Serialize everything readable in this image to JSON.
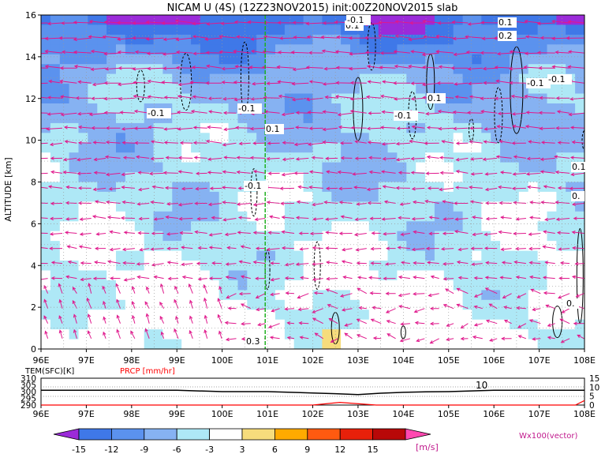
{
  "chart_data": [
    {
      "type": "heatmap",
      "title": "NICAM U (4S) (12Z23NOV2015) init:00Z20NOV2015 slab",
      "ylabel": "ALTITUDE [km]",
      "x_ticks": [
        "96E",
        "97E",
        "98E",
        "99E",
        "100E",
        "101E",
        "102E",
        "103E",
        "104E",
        "105E",
        "106E",
        "107E",
        "108E"
      ],
      "y_ticks": [
        "0",
        "2",
        "4",
        "6",
        "8",
        "10",
        "12",
        "14",
        "16"
      ],
      "xlim": [
        96,
        108
      ],
      "ylim": [
        0,
        16
      ],
      "grid": true,
      "marker_longitude": 100.95,
      "contour_labels": [
        "0.1",
        "-0.1",
        "-0.1",
        "-0.1",
        "0.1",
        "-0.1",
        "0.1",
        "-0.1",
        "0.1",
        "0.2",
        "-0.1",
        "0.1",
        "0.",
        "0.",
        "0.3",
        "-0.1"
      ],
      "colorbar": {
        "labels": [
          "-15",
          "-12",
          "-9",
          "-6",
          "-3",
          "3",
          "6",
          "9",
          "12",
          "15"
        ],
        "unit": "[m/s]",
        "colors": [
          "#9b2bd9",
          "#3f78e8",
          "#5b92ee",
          "#86b2f2",
          "#aee8f6",
          "#ffffff",
          "#f6dc7c",
          "#ffaa00",
          "#ff5a10",
          "#e8200a",
          "#b80808",
          "#ff48b0"
        ]
      },
      "vector_label": "Wx100(vector)",
      "vector_color": "#e0188c"
    },
    {
      "type": "line",
      "series": [
        {
          "name": "TEM(SFC)[K]",
          "color": "#000000",
          "x": [
            96,
            97,
            98,
            99,
            100,
            101,
            102,
            102.5,
            103,
            103.5,
            104,
            104.5,
            105,
            105.5,
            106,
            107,
            108
          ],
          "values": [
            301,
            301,
            301,
            301,
            300,
            300,
            299,
            298.5,
            297.8,
            298.8,
            299.5,
            299.8,
            300,
            300.5,
            301,
            301,
            301
          ]
        },
        {
          "name": "PRCP [mm/hr]",
          "color": "#ff0000",
          "x": [
            96,
            102,
            102.6,
            103.4,
            104,
            106,
            107.8,
            108
          ],
          "values": [
            0,
            0,
            1.5,
            0,
            0,
            0,
            0,
            2.5
          ]
        }
      ],
      "x_ticks": [
        "96E",
        "97E",
        "98E",
        "99E",
        "100E",
        "101E",
        "102E",
        "103E",
        "104E",
        "105E",
        "106E",
        "107E",
        "108E"
      ],
      "y_ticks_left": [
        "310",
        "305",
        "300",
        "295",
        "290"
      ],
      "y_ticks_right": [
        "15",
        "10",
        "5",
        "0"
      ],
      "annotation": "10"
    }
  ]
}
